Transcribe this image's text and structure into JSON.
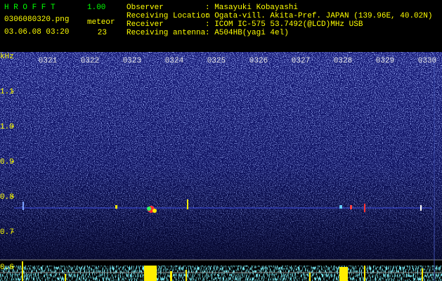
{
  "header": {
    "app_name": "H R O F F T",
    "version": "1.00",
    "filename": "0306080320.png",
    "datetime": "03.06.08 03:20",
    "meteor_label": "meteor",
    "meteor_count": 23,
    "fields": [
      {
        "label": "Observer",
        "value": ": Masayuki Kobayashi"
      },
      {
        "label": "Receiving Location",
        "value": ": Ogata-vill. Akita-Pref. JAPAN (139.96E, 40.02N)"
      },
      {
        "label": "Receiver",
        "value": ": ICOM IC-575 53.7492(@LCD)MHz USB"
      },
      {
        "label": "Receiving antenna",
        "value": ": A504HB(yagi 4el)"
      }
    ]
  },
  "axes": {
    "y_unit": "kHz",
    "y_labels": [
      1.1,
      {
        "value": 1,
        "label": "1.0"
      },
      0.9,
      0.8,
      0.7,
      0.6
    ],
    "time_labels": [
      "0321",
      "0322",
      "0323",
      "0324",
      "0325",
      "0326",
      "0327",
      "0328",
      "0329",
      "0330"
    ]
  }
}
